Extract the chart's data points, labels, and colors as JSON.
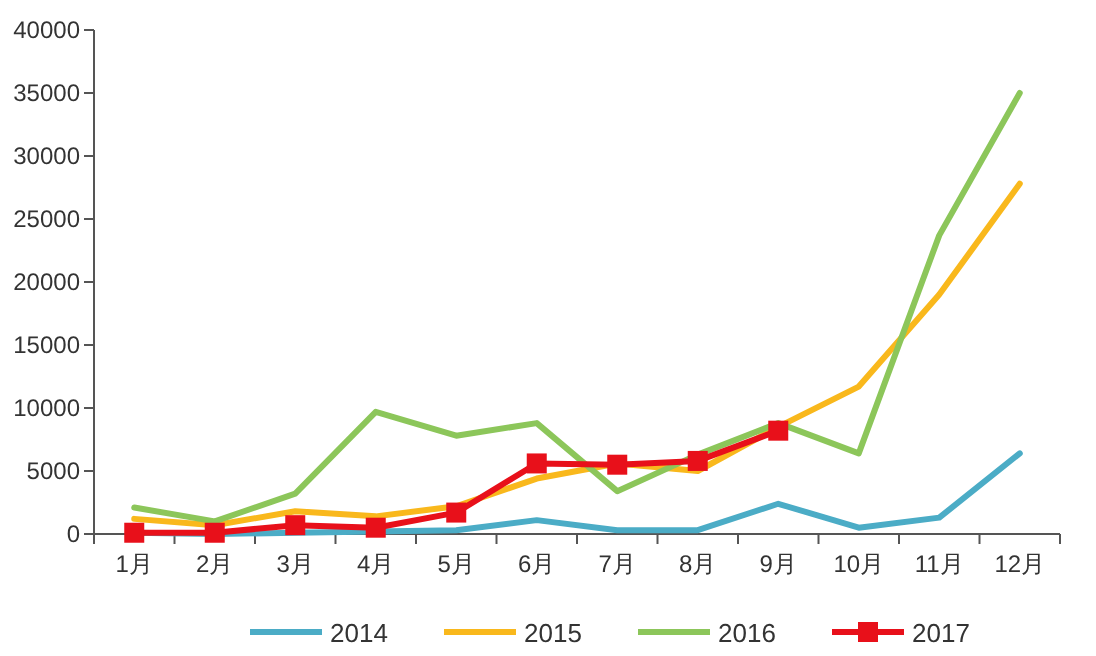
{
  "chart_data": {
    "type": "line",
    "categories": [
      "1月",
      "2月",
      "3月",
      "4月",
      "5月",
      "6月",
      "7月",
      "8月",
      "9月",
      "10月",
      "11月",
      "12月"
    ],
    "ylim": [
      0,
      40000
    ],
    "yticks": [
      0,
      5000,
      10000,
      15000,
      20000,
      25000,
      30000,
      35000,
      40000
    ],
    "grid": false,
    "legend": "bottom",
    "series": [
      {
        "name": "2014",
        "color": "#4bacc6",
        "marker": "none",
        "values": [
          100,
          0,
          100,
          200,
          300,
          1100,
          300,
          300,
          2400,
          500,
          1300,
          6400
        ]
      },
      {
        "name": "2015",
        "color": "#f9b81c",
        "marker": "none",
        "values": [
          1200,
          700,
          1800,
          1400,
          2200,
          4400,
          5600,
          5000,
          8500,
          11700,
          19000,
          27800
        ]
      },
      {
        "name": "2016",
        "color": "#8cc65a",
        "marker": "none",
        "values": [
          2100,
          1000,
          3200,
          9700,
          7800,
          8800,
          3400,
          6300,
          8800,
          6400,
          23700,
          35000
        ]
      },
      {
        "name": "2017",
        "color": "#e8101a",
        "marker": "square",
        "values": [
          100,
          100,
          700,
          500,
          1700,
          5600,
          5500,
          5800,
          8200,
          null,
          null,
          null
        ]
      }
    ]
  }
}
